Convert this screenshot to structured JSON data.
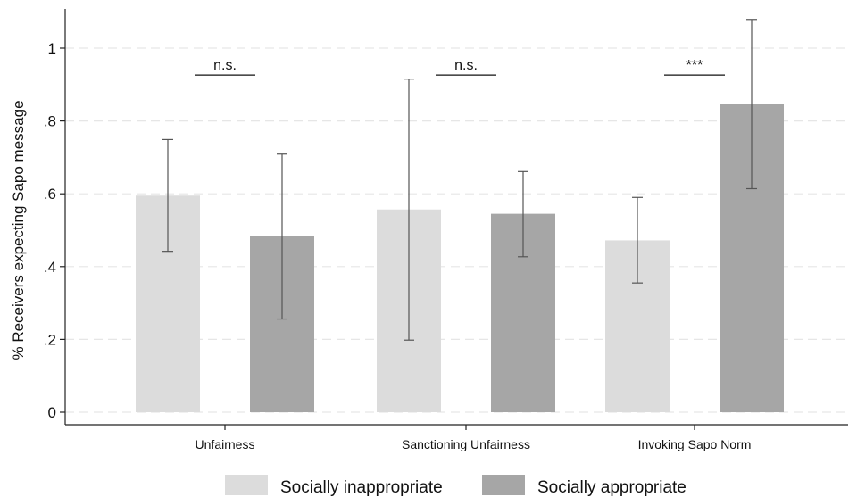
{
  "chart_data": {
    "type": "bar",
    "title": "",
    "xlabel": "",
    "ylabel": "% Receivers expecting Sapo message",
    "ylim": [
      0,
      1.08
    ],
    "yticks": [
      {
        "value": 0,
        "label": "0"
      },
      {
        "value": 0.2,
        "label": ".2"
      },
      {
        "value": 0.4,
        "label": ".4"
      },
      {
        "value": 0.6,
        "label": ".6"
      },
      {
        "value": 0.8,
        "label": ".8"
      },
      {
        "value": 1.0,
        "label": "1"
      }
    ],
    "grid": true,
    "categories": [
      "Unfairness",
      "Sanctioning Unfairness",
      "Invoking Sapo Norm"
    ],
    "series": [
      {
        "name": "Socially inappropriate",
        "color": "#dcdcdc",
        "values": [
          0.595,
          0.557,
          0.472
        ],
        "ci_low": [
          0.442,
          0.198,
          0.355
        ],
        "ci_high": [
          0.749,
          0.915,
          0.59
        ]
      },
      {
        "name": "Socially appropriate",
        "color": "#a6a6a6",
        "values": [
          0.483,
          0.545,
          0.846
        ],
        "ci_low": [
          0.256,
          0.427,
          0.614
        ],
        "ci_high": [
          0.709,
          0.661,
          1.079
        ]
      }
    ],
    "significance": [
      {
        "category_index": 0,
        "label": "n.s.",
        "y": 0.925
      },
      {
        "category_index": 1,
        "label": "n.s.",
        "y": 0.925
      },
      {
        "category_index": 2,
        "label": "***",
        "y": 0.925
      }
    ],
    "legend_position": "bottom"
  }
}
